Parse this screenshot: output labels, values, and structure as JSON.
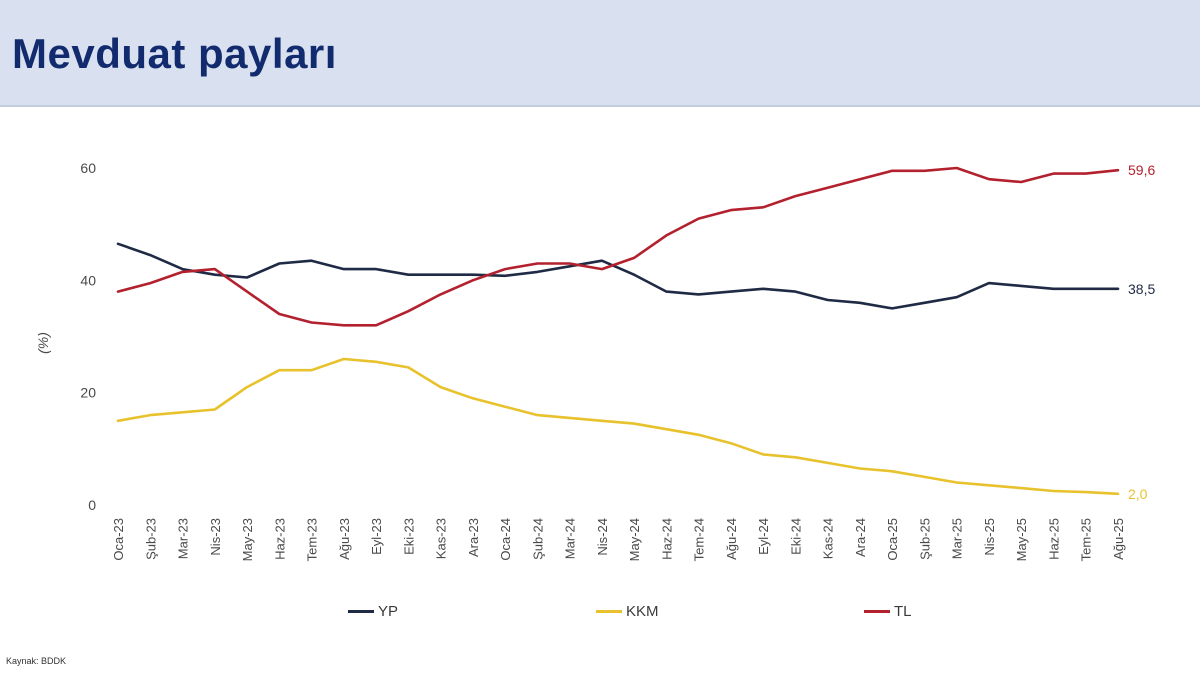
{
  "page": {
    "title": "Mevduat payları",
    "source": "Kaynak: BDDK"
  },
  "colors": {
    "YP": "#1f2a44",
    "KKM": "#e8c22c",
    "TL": "#b3202e",
    "axis_text": "#4a4a4a"
  },
  "chart_data": {
    "type": "line",
    "title": "Mevduat payları",
    "ylabel": "(%)",
    "xlabel": "",
    "ylim": [
      0,
      60
    ],
    "yticks": [
      "0",
      "20",
      "40",
      "60"
    ],
    "categories": [
      "Oca-23",
      "Şub-23",
      "Mar-23",
      "Nis-23",
      "May-23",
      "Haz-23",
      "Tem-23",
      "Ağu-23",
      "Eyl-23",
      "Eki-23",
      "Kas-23",
      "Ara-23",
      "Oca-24",
      "Şub-24",
      "Mar-24",
      "Nis-24",
      "May-24",
      "Haz-24",
      "Tem-24",
      "Ağu-24",
      "Eyl-24",
      "Eki-24",
      "Kas-24",
      "Ara-24",
      "Oca-25",
      "Şub-25",
      "Mar-25",
      "Nis-25",
      "May-25",
      "Haz-25",
      "Tem-25",
      "Ağu-25"
    ],
    "legend_position": "bottom",
    "series": [
      {
        "name": "YP",
        "color_key": "YP",
        "end_label": "38,5",
        "values": [
          46.5,
          44.5,
          42.0,
          41.0,
          40.5,
          43.0,
          43.5,
          42.0,
          42.0,
          41.0,
          41.0,
          41.0,
          40.8,
          41.5,
          42.5,
          43.5,
          41.0,
          38.0,
          37.5,
          38.0,
          38.5,
          38.0,
          36.5,
          36.0,
          35.0,
          36.0,
          37.0,
          39.5,
          39.0,
          38.5,
          38.5,
          38.5
        ]
      },
      {
        "name": "KKM",
        "color_key": "KKM",
        "end_label": "2,0",
        "values": [
          15.0,
          16.0,
          16.5,
          17.0,
          21.0,
          24.0,
          24.0,
          26.0,
          25.5,
          24.5,
          21.0,
          19.0,
          17.5,
          16.0,
          15.5,
          15.0,
          14.5,
          13.5,
          12.5,
          11.0,
          9.0,
          8.5,
          7.5,
          6.5,
          6.0,
          5.0,
          4.0,
          3.5,
          3.0,
          2.5,
          2.3,
          2.0
        ]
      },
      {
        "name": "TL",
        "color_key": "TL",
        "end_label": "59,6",
        "values": [
          38.0,
          39.5,
          41.5,
          42.0,
          38.0,
          34.0,
          32.5,
          32.0,
          32.0,
          34.5,
          37.5,
          40.0,
          42.0,
          43.0,
          43.0,
          42.0,
          44.0,
          48.0,
          51.0,
          52.5,
          53.0,
          55.0,
          56.5,
          58.0,
          59.5,
          59.5,
          60.0,
          58.0,
          57.5,
          59.0,
          59.0,
          59.6
        ]
      }
    ]
  }
}
